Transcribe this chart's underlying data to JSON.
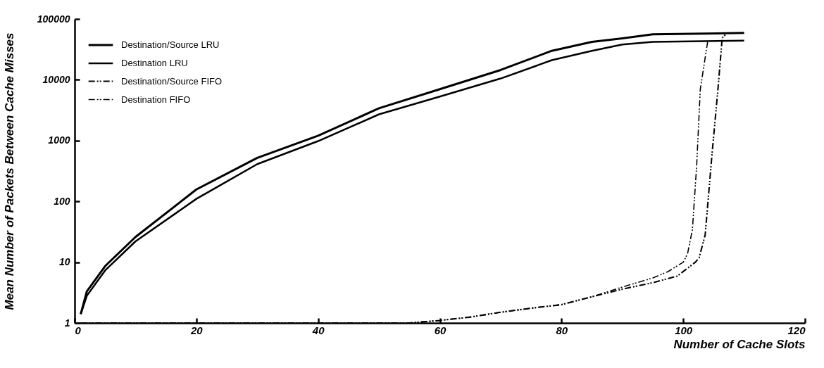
{
  "chart_data": {
    "type": "line",
    "xlabel": "Number of Cache Slots",
    "ylabel": "Mean Number of Packets Between Cache Misses",
    "log": "y",
    "xlim": [
      0,
      120
    ],
    "xticks": [
      0,
      20,
      40,
      60,
      80,
      100,
      120
    ],
    "ylim": [
      1,
      100000
    ],
    "yticks": [
      1,
      10,
      100,
      1000,
      10000,
      100000
    ],
    "legend": "top left",
    "grid": false,
    "series": [
      {
        "name": "Destination/Source LRU",
        "color": "#000000",
        "line_style": "solid",
        "x": [
          1,
          2,
          5,
          10,
          20,
          30,
          40,
          50,
          60,
          70,
          78.4,
          85,
          90,
          95,
          110
        ],
        "values": [
          1.4,
          3.3,
          8.6,
          26,
          157,
          520,
          1200,
          3400,
          7000,
          14500,
          30000,
          42000,
          48000,
          56000,
          59000
        ]
      },
      {
        "name": "Destination LRU",
        "color": "#000000",
        "line_style": "solid",
        "x": [
          1,
          2,
          5,
          10,
          20,
          30,
          40,
          50,
          60,
          70,
          78.4,
          85,
          90,
          95,
          110
        ],
        "values": [
          1.4,
          2.8,
          7.3,
          22,
          110,
          410,
          980,
          2700,
          5300,
          10500,
          21000,
          30000,
          38000,
          42000,
          44000
        ]
      },
      {
        "name": "Destination/Source FIFO",
        "color": "#000000",
        "line_style": "dashed",
        "x": [
          1,
          55,
          60,
          65,
          70,
          75,
          80,
          85,
          90,
          95,
          99,
          102,
          102.6,
          103.6,
          104.7,
          105.7,
          106.4,
          107
        ],
        "values": [
          1,
          1,
          1.1,
          1.25,
          1.5,
          1.75,
          2,
          2.7,
          3.6,
          4.6,
          5.9,
          10,
          11.8,
          28,
          560,
          7000,
          49000,
          56000
        ]
      },
      {
        "name": "Destination FIFO",
        "color": "#000000",
        "line_style": "dashed",
        "x": [
          1,
          55,
          60,
          65,
          70,
          75,
          80,
          85,
          90,
          95,
          97.5,
          100,
          100.7,
          101.5,
          102.2,
          102.8,
          104
        ],
        "values": [
          1,
          1,
          1.1,
          1.25,
          1.5,
          1.75,
          2,
          2.7,
          3.9,
          5.5,
          7,
          10,
          13.7,
          34,
          385,
          7000,
          42000
        ]
      }
    ]
  }
}
